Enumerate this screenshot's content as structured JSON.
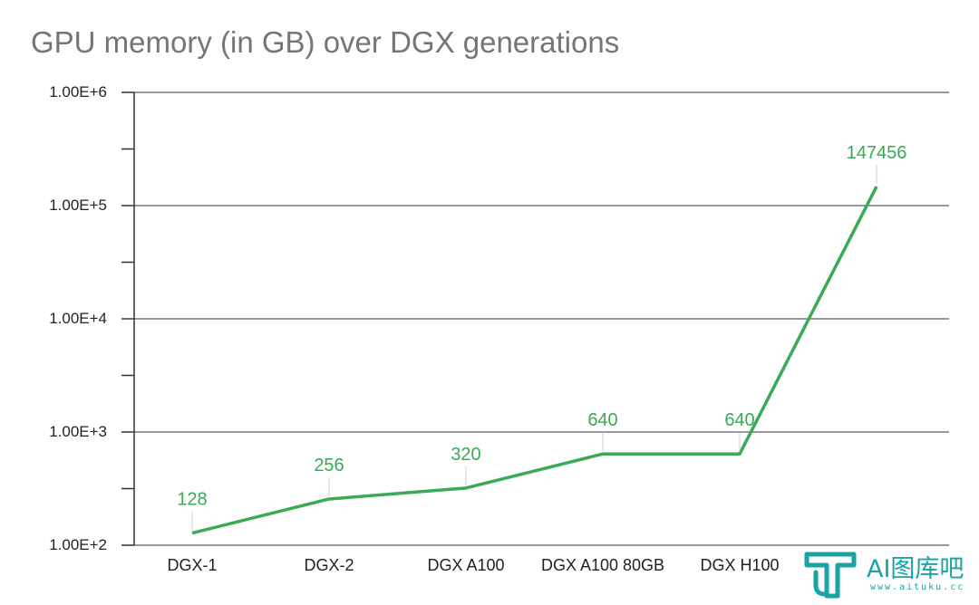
{
  "chart_data": {
    "type": "line",
    "title": "GPU memory (in GB) over DGX generations",
    "xlabel": "",
    "ylabel": "",
    "y_scale": "log",
    "ylim": [
      100,
      1000000
    ],
    "y_ticks": [
      100,
      1000,
      10000,
      100000,
      1000000
    ],
    "y_tick_labels": [
      "1.00E+2",
      "1.00E+3",
      "1.00E+4",
      "1.00E+5",
      "1.00E+6"
    ],
    "grid": true,
    "categories": [
      "DGX-1",
      "DGX-2",
      "DGX A100",
      "DGX A100 80GB",
      "DGX H100",
      ""
    ],
    "series": [
      {
        "values": [
          128,
          256,
          320,
          640,
          640,
          147456
        ],
        "data_labels": [
          "128",
          "256",
          "320",
          "640",
          "640",
          "147456"
        ],
        "color": "#3aaa55"
      }
    ]
  },
  "colors": {
    "series": "#3aaa55",
    "title": "#757575",
    "grid": "#333333",
    "axis_text": "#222222",
    "watermark": "#1aa3a3"
  },
  "watermark": {
    "text": "AI图库吧",
    "url": "www.aituku.cc",
    "icon": "aituku-logo-icon"
  }
}
